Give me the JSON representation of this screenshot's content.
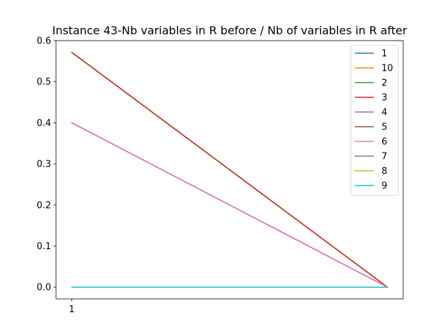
{
  "chart_data": {
    "type": "line",
    "title": "Instance 43-Nb variables in R before / Nb of variables in R after",
    "xlabel": "",
    "ylabel": "",
    "x": [
      1,
      2
    ],
    "x_ticks": [
      1
    ],
    "x_tick_labels": [
      "1"
    ],
    "xlim": [
      0.95,
      2.05
    ],
    "ylim": [
      -0.0286,
      0.6
    ],
    "y_ticks": [
      0.0,
      0.1,
      0.2,
      0.3,
      0.4,
      0.5,
      0.6
    ],
    "y_tick_labels": [
      "0.0",
      "0.1",
      "0.2",
      "0.3",
      "0.4",
      "0.5",
      "0.6"
    ],
    "grid": false,
    "legend_position": "upper right",
    "series": [
      {
        "name": "1",
        "color": "#1f77b4",
        "values": [
          0.5714,
          0.0
        ]
      },
      {
        "name": "10",
        "color": "#ff7f0e",
        "values": [
          0.5714,
          0.0
        ]
      },
      {
        "name": "2",
        "color": "#2ca02c",
        "values": [
          0.5714,
          0.0
        ]
      },
      {
        "name": "3",
        "color": "#d62728",
        "values": [
          0.5714,
          0.0
        ]
      },
      {
        "name": "4",
        "color": "#9467bd",
        "values": [
          0.4,
          0.0
        ]
      },
      {
        "name": "5",
        "color": "#8c564b",
        "values": [
          0.4,
          0.0
        ]
      },
      {
        "name": "6",
        "color": "#e377c2",
        "values": [
          0.4,
          0.0
        ]
      },
      {
        "name": "7",
        "color": "#7f7f7f",
        "values": [
          0.0,
          0.0
        ]
      },
      {
        "name": "8",
        "color": "#bcbd22",
        "values": [
          0.0,
          0.0
        ]
      },
      {
        "name": "9",
        "color": "#17becf",
        "values": [
          0.0,
          0.0
        ]
      }
    ]
  }
}
